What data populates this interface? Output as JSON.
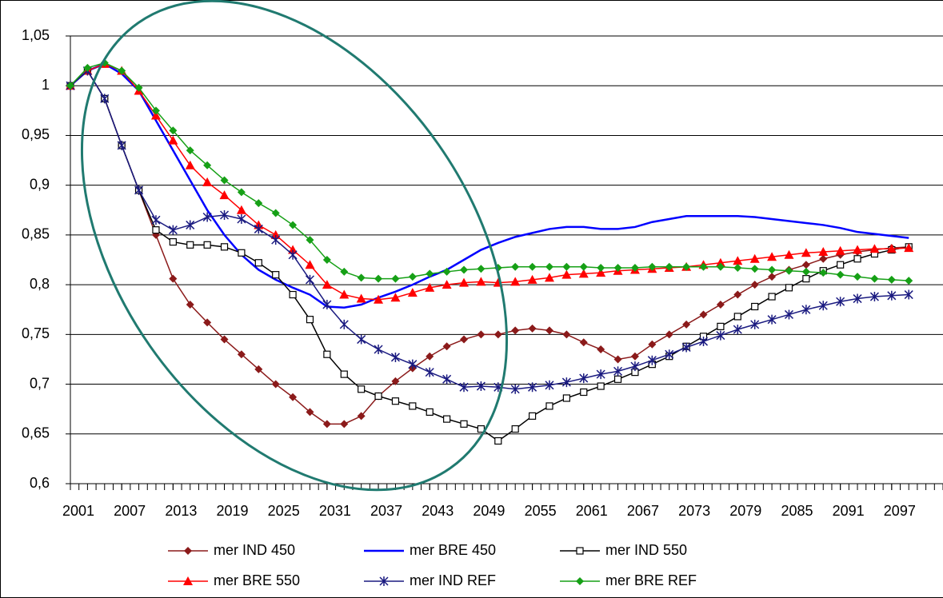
{
  "chart_data": {
    "type": "line",
    "x": [
      2001,
      2003,
      2005,
      2007,
      2009,
      2011,
      2013,
      2015,
      2017,
      2019,
      2021,
      2023,
      2025,
      2027,
      2029,
      2031,
      2033,
      2035,
      2037,
      2039,
      2041,
      2043,
      2045,
      2047,
      2049,
      2051,
      2053,
      2055,
      2057,
      2059,
      2061,
      2063,
      2065,
      2067,
      2069,
      2071,
      2073,
      2075,
      2077,
      2079,
      2081,
      2083,
      2085,
      2087,
      2089,
      2091,
      2093,
      2095,
      2097,
      2099
    ],
    "xlim": [
      2001,
      2103
    ],
    "xticks": [
      2001,
      2007,
      2013,
      2019,
      2025,
      2031,
      2037,
      2043,
      2049,
      2055,
      2061,
      2067,
      2073,
      2079,
      2085,
      2091,
      2097
    ],
    "ylim": [
      0.6,
      1.05
    ],
    "yticks": [
      {
        "value": 0.6,
        "label": "0,6"
      },
      {
        "value": 0.65,
        "label": "0,65"
      },
      {
        "value": 0.7,
        "label": "0,7"
      },
      {
        "value": 0.75,
        "label": "0,75"
      },
      {
        "value": 0.8,
        "label": "0,8"
      },
      {
        "value": 0.85,
        "label": "0,85"
      },
      {
        "value": 0.9,
        "label": "0,9"
      },
      {
        "value": 0.95,
        "label": "0,95"
      },
      1,
      {
        "value": 1.05,
        "label": "1,05"
      }
    ],
    "grid": true,
    "legend": "bottom",
    "series": [
      {
        "name": "mer IND 450",
        "color": "#8b1a1a",
        "marker": "diamond",
        "values": [
          1.0,
          1.015,
          0.987,
          0.94,
          0.895,
          0.85,
          0.806,
          0.78,
          0.762,
          0.745,
          0.73,
          0.715,
          0.7,
          0.687,
          0.672,
          0.66,
          0.66,
          0.668,
          0.688,
          0.703,
          0.716,
          0.728,
          0.738,
          0.745,
          0.75,
          0.75,
          0.754,
          0.756,
          0.754,
          0.75,
          0.742,
          0.735,
          0.725,
          0.728,
          0.74,
          0.75,
          0.76,
          0.77,
          0.78,
          0.79,
          0.8,
          0.808,
          0.815,
          0.82,
          0.826,
          0.83,
          0.833,
          0.835,
          0.837,
          0.838
        ]
      },
      {
        "name": "mer BRE 450",
        "color": "#0000ff",
        "marker": "none",
        "values": [
          1.0,
          1.015,
          1.022,
          1.012,
          0.995,
          0.965,
          0.935,
          0.905,
          0.875,
          0.85,
          0.83,
          0.815,
          0.805,
          0.797,
          0.79,
          0.778,
          0.777,
          0.78,
          0.787,
          0.793,
          0.8,
          0.808,
          0.815,
          0.825,
          0.835,
          0.842,
          0.848,
          0.852,
          0.856,
          0.858,
          0.858,
          0.856,
          0.856,
          0.858,
          0.863,
          0.866,
          0.869,
          0.869,
          0.869,
          0.869,
          0.868,
          0.866,
          0.864,
          0.862,
          0.86,
          0.857,
          0.853,
          0.851,
          0.849,
          0.847
        ]
      },
      {
        "name": "mer IND 550",
        "color": "#000000",
        "marker": "square",
        "values": [
          1.0,
          1.015,
          0.987,
          0.94,
          0.895,
          0.855,
          0.843,
          0.84,
          0.84,
          0.838,
          0.832,
          0.822,
          0.81,
          0.79,
          0.765,
          0.73,
          0.71,
          0.695,
          0.688,
          0.683,
          0.678,
          0.672,
          0.665,
          0.66,
          0.655,
          0.643,
          0.655,
          0.668,
          0.678,
          0.686,
          0.692,
          0.698,
          0.705,
          0.712,
          0.72,
          0.728,
          0.738,
          0.748,
          0.758,
          0.768,
          0.778,
          0.788,
          0.797,
          0.806,
          0.814,
          0.82,
          0.826,
          0.831,
          0.835,
          0.838
        ]
      },
      {
        "name": "mer BRE 550",
        "color": "#ff0000",
        "marker": "triangle",
        "values": [
          1.0,
          1.015,
          1.022,
          1.015,
          0.995,
          0.97,
          0.945,
          0.92,
          0.903,
          0.89,
          0.875,
          0.86,
          0.85,
          0.835,
          0.82,
          0.8,
          0.79,
          0.786,
          0.785,
          0.787,
          0.792,
          0.797,
          0.8,
          0.802,
          0.803,
          0.802,
          0.803,
          0.805,
          0.807,
          0.81,
          0.811,
          0.812,
          0.814,
          0.815,
          0.816,
          0.817,
          0.818,
          0.82,
          0.822,
          0.824,
          0.826,
          0.828,
          0.83,
          0.832,
          0.833,
          0.834,
          0.835,
          0.836,
          0.836,
          0.837
        ]
      },
      {
        "name": "mer IND REF",
        "color": "#1a1a80",
        "marker": "asterisk",
        "values": [
          1.0,
          1.015,
          0.987,
          0.94,
          0.895,
          0.865,
          0.855,
          0.86,
          0.868,
          0.87,
          0.866,
          0.856,
          0.845,
          0.83,
          0.805,
          0.78,
          0.76,
          0.745,
          0.735,
          0.727,
          0.72,
          0.712,
          0.705,
          0.697,
          0.698,
          0.697,
          0.695,
          0.697,
          0.699,
          0.702,
          0.706,
          0.71,
          0.713,
          0.718,
          0.724,
          0.73,
          0.737,
          0.743,
          0.749,
          0.755,
          0.76,
          0.765,
          0.77,
          0.775,
          0.779,
          0.783,
          0.786,
          0.788,
          0.789,
          0.79
        ]
      },
      {
        "name": "mer BRE REF",
        "color": "#16a016",
        "marker": "diamond",
        "values": [
          1.0,
          1.018,
          1.023,
          1.015,
          0.998,
          0.975,
          0.955,
          0.935,
          0.92,
          0.905,
          0.893,
          0.882,
          0.872,
          0.86,
          0.845,
          0.825,
          0.813,
          0.807,
          0.806,
          0.806,
          0.808,
          0.811,
          0.813,
          0.815,
          0.816,
          0.817,
          0.818,
          0.818,
          0.818,
          0.818,
          0.818,
          0.817,
          0.817,
          0.817,
          0.818,
          0.818,
          0.818,
          0.818,
          0.818,
          0.817,
          0.816,
          0.815,
          0.814,
          0.813,
          0.812,
          0.81,
          0.808,
          0.806,
          0.805,
          0.804
        ]
      }
    ]
  }
}
